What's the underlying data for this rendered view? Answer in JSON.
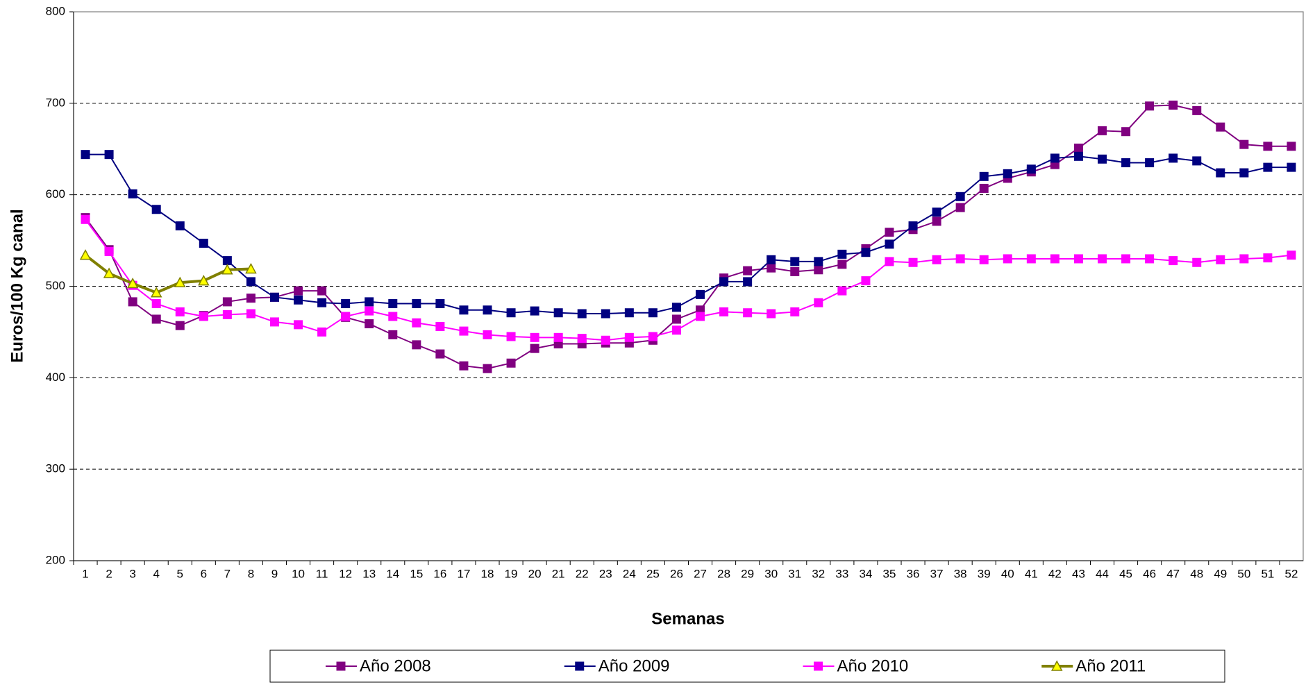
{
  "chart_data": {
    "type": "line",
    "x_label": "Semanas",
    "y_label": "Euros/100 Kg canal",
    "categories": [
      "1",
      "2",
      "3",
      "4",
      "5",
      "6",
      "7",
      "8",
      "9",
      "10",
      "11",
      "12",
      "13",
      "14",
      "15",
      "16",
      "17",
      "18",
      "19",
      "20",
      "21",
      "22",
      "23",
      "24",
      "25",
      "26",
      "27",
      "28",
      "29",
      "30",
      "31",
      "32",
      "33",
      "34",
      "35",
      "36",
      "37",
      "38",
      "39",
      "40",
      "41",
      "42",
      "43",
      "44",
      "45",
      "46",
      "47",
      "48",
      "49",
      "50",
      "51",
      "52"
    ],
    "ylim": [
      200,
      800
    ],
    "yticks": [
      200,
      300,
      400,
      500,
      600,
      700,
      800
    ],
    "grid": true,
    "legend": "bottom",
    "series": [
      {
        "name": "Año 2008",
        "color": "#800080",
        "marker": "square",
        "marker_fill": "#800080",
        "values": [
          575,
          540,
          483,
          464,
          457,
          468,
          483,
          487,
          488,
          495,
          495,
          466,
          459,
          447,
          436,
          426,
          413,
          410,
          416,
          432,
          437,
          437,
          438,
          438,
          441,
          464,
          474,
          509,
          517,
          520,
          516,
          518,
          524,
          541,
          559,
          562,
          571,
          586,
          607,
          618,
          625,
          633,
          651,
          670,
          669,
          697,
          698,
          692,
          674,
          655,
          653,
          653
        ]
      },
      {
        "name": "Año 2009",
        "color": "#000080",
        "marker": "square",
        "marker_fill": "#000080",
        "values": [
          644,
          644,
          601,
          584,
          566,
          547,
          528,
          505,
          488,
          485,
          482,
          481,
          483,
          481,
          481,
          481,
          474,
          474,
          471,
          473,
          471,
          470,
          470,
          471,
          471,
          477,
          491,
          505,
          505,
          529,
          527,
          527,
          535,
          537,
          546,
          566,
          581,
          598,
          620,
          623,
          628,
          640,
          642,
          639,
          635,
          635,
          640,
          637,
          624,
          624,
          630,
          630
        ]
      },
      {
        "name": "Año 2010",
        "color": "#ff00ff",
        "marker": "square",
        "marker_fill": "#ff00ff",
        "values": [
          573,
          538,
          501,
          481,
          472,
          467,
          469,
          470,
          461,
          458,
          450,
          467,
          473,
          467,
          460,
          456,
          451,
          447,
          445,
          444,
          444,
          443,
          441,
          444,
          445,
          452,
          467,
          472,
          471,
          470,
          472,
          482,
          495,
          506,
          527,
          526,
          529,
          530,
          529,
          530,
          530,
          530,
          530,
          530,
          530,
          530,
          528,
          526,
          529,
          530,
          531,
          534
        ]
      },
      {
        "name": "Año 2011",
        "color": "#808000",
        "marker": "triangle",
        "marker_fill": "#ffff00",
        "values": [
          534,
          514,
          503,
          493,
          504,
          506,
          518,
          519,
          null,
          null,
          null,
          null,
          null,
          null,
          null,
          null,
          null,
          null,
          null,
          null,
          null,
          null,
          null,
          null,
          null,
          null,
          null,
          null,
          null,
          null,
          null,
          null,
          null,
          null,
          null,
          null,
          null,
          null,
          null,
          null,
          null,
          null,
          null,
          null,
          null,
          null,
          null,
          null,
          null,
          null,
          null,
          null
        ]
      }
    ]
  }
}
